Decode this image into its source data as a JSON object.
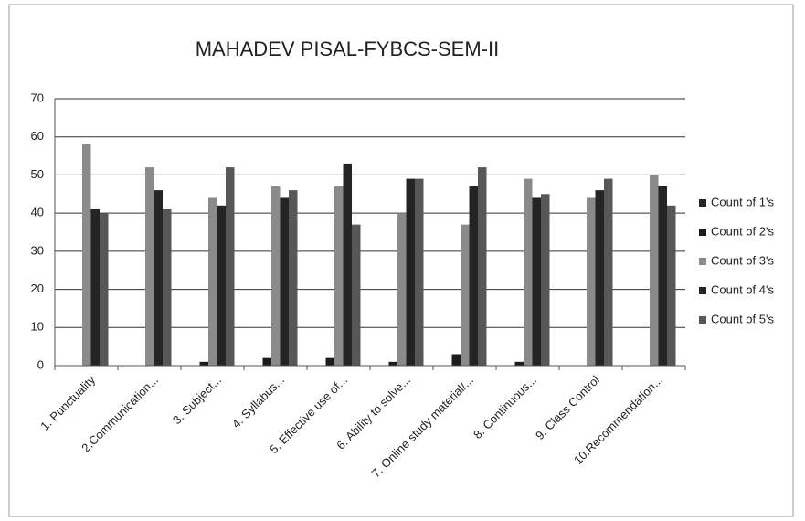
{
  "chart_data": {
    "type": "bar",
    "title": "MAHADEV PISAL-FYBCS-SEM-II",
    "categories": [
      "1. Punctuality",
      "2.Communication...",
      "3. Subject...",
      "4. Syllabus...",
      "5. Effective use of...",
      "6. Ability to solve...",
      "7. Online study material/...",
      "8. Continuous...",
      "9. Class Control",
      "10.Recommendation..."
    ],
    "series": [
      {
        "name": "Count of 1's",
        "color": "#262626",
        "values": [
          0,
          0,
          0,
          0,
          0,
          0,
          0,
          0,
          0,
          0
        ]
      },
      {
        "name": "Count of 2's",
        "color": "#1c1c1c",
        "values": [
          0,
          0,
          1,
          2,
          2,
          1,
          3,
          1,
          0,
          0
        ]
      },
      {
        "name": "Count of 3's",
        "color": "#8a8a8a",
        "values": [
          58,
          52,
          44,
          47,
          47,
          40,
          37,
          49,
          44,
          50
        ]
      },
      {
        "name": "Count of 4's",
        "color": "#242424",
        "values": [
          41,
          46,
          42,
          44,
          53,
          49,
          47,
          44,
          46,
          47
        ]
      },
      {
        "name": "Count of 5's",
        "color": "#575757",
        "values": [
          40,
          41,
          52,
          46,
          37,
          49,
          52,
          45,
          49,
          42
        ]
      }
    ],
    "ylim": [
      0,
      70
    ],
    "yticks": [
      0,
      10,
      20,
      30,
      40,
      50,
      60,
      70
    ],
    "grid": true,
    "legend": "right"
  }
}
